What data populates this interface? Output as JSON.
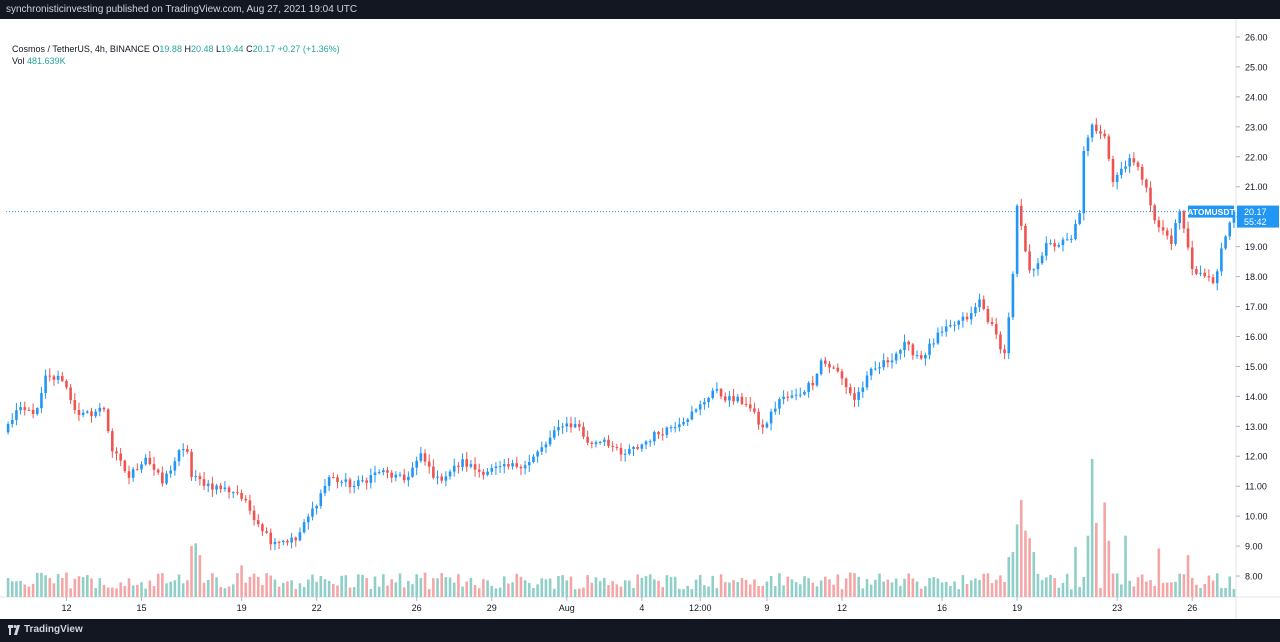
{
  "header": {
    "text": "synchronisticinvesting published on TradingView.com, Aug 27, 2021 19:04 UTC"
  },
  "legend": {
    "symbol": "Cosmos / TetherUS, 4h, BINANCE",
    "o_label": "O",
    "o_value": "19.88",
    "h_label": "H",
    "h_value": "20.48",
    "l_label": "L",
    "l_value": "19.44",
    "c_label": "C",
    "c_value": "20.17",
    "change": "+0.27 (+1.36%)",
    "vol_label": "Vol",
    "vol_value": "481.639K"
  },
  "price_tag": {
    "ticker": "ATOMUSDT",
    "price": "20.17",
    "countdown": "55:42"
  },
  "footer": {
    "brand": "TradingView"
  },
  "colors": {
    "up": "#26a69a",
    "up_candle": "#2196f3",
    "down_candle": "#ef5350",
    "vol_up": "#8fcfc8",
    "vol_down": "#f4a6a6",
    "background": "#ffffff",
    "frame": "#131722",
    "price_line": "#2196f3"
  },
  "chart_data": {
    "type": "candlestick",
    "title": "Cosmos / TetherUS, 4h, BINANCE",
    "y_ticks": [
      "8.00",
      "9.00",
      "10.00",
      "11.00",
      "12.00",
      "13.00",
      "14.00",
      "15.00",
      "16.00",
      "17.00",
      "18.00",
      "19.00",
      "20.00",
      "21.00",
      "22.00",
      "23.00",
      "24.00",
      "25.00",
      "26.00"
    ],
    "ylim": [
      7.3,
      26.4
    ],
    "x_ticks": [
      "12",
      "15",
      "19",
      "22",
      "26",
      "29",
      "Aug",
      "4",
      "12:00",
      "9",
      "12",
      "16",
      "19",
      "23",
      "26"
    ],
    "x_tick_bars": [
      14,
      32,
      56,
      74,
      98,
      116,
      134,
      152,
      166,
      182,
      200,
      224,
      242,
      266,
      284
    ],
    "bar_count": 295,
    "last_price": 20.17,
    "volume_unit": "K",
    "anchors": [
      [
        0,
        12.8
      ],
      [
        3,
        13.5
      ],
      [
        8,
        13.5
      ],
      [
        10,
        14.6
      ],
      [
        14,
        14.6
      ],
      [
        18,
        13.3
      ],
      [
        24,
        13.6
      ],
      [
        26,
        12.2
      ],
      [
        30,
        11.3
      ],
      [
        34,
        12.0
      ],
      [
        38,
        11.1
      ],
      [
        42,
        12.1
      ],
      [
        44,
        12.2
      ],
      [
        45,
        11.3
      ],
      [
        50,
        11.0
      ],
      [
        56,
        10.8
      ],
      [
        60,
        10.0
      ],
      [
        64,
        9.2
      ],
      [
        70,
        9.2
      ],
      [
        74,
        10.2
      ],
      [
        78,
        11.3
      ],
      [
        84,
        11.0
      ],
      [
        90,
        11.5
      ],
      [
        96,
        11.2
      ],
      [
        100,
        12.0
      ],
      [
        104,
        11.2
      ],
      [
        110,
        11.8
      ],
      [
        114,
        11.5
      ],
      [
        120,
        11.6
      ],
      [
        126,
        11.8
      ],
      [
        130,
        12.4
      ],
      [
        134,
        13.1
      ],
      [
        138,
        13.0
      ],
      [
        140,
        12.4
      ],
      [
        144,
        12.6
      ],
      [
        148,
        12.0
      ],
      [
        152,
        12.3
      ],
      [
        156,
        12.7
      ],
      [
        160,
        13.0
      ],
      [
        166,
        13.5
      ],
      [
        170,
        14.2
      ],
      [
        174,
        13.9
      ],
      [
        178,
        13.8
      ],
      [
        182,
        12.9
      ],
      [
        186,
        13.9
      ],
      [
        190,
        14.0
      ],
      [
        194,
        14.5
      ],
      [
        196,
        15.2
      ],
      [
        200,
        14.8
      ],
      [
        204,
        13.9
      ],
      [
        208,
        14.8
      ],
      [
        212,
        15.2
      ],
      [
        216,
        15.7
      ],
      [
        220,
        15.3
      ],
      [
        224,
        16.0
      ],
      [
        228,
        16.4
      ],
      [
        232,
        16.7
      ],
      [
        234,
        17.2
      ],
      [
        237,
        16.3
      ],
      [
        240,
        15.4
      ],
      [
        242,
        18.0
      ],
      [
        243,
        20.3
      ],
      [
        246,
        18.1
      ],
      [
        250,
        19.0
      ],
      [
        256,
        19.2
      ],
      [
        258,
        20.2
      ],
      [
        259,
        22.1
      ],
      [
        261,
        23.0
      ],
      [
        264,
        22.8
      ],
      [
        266,
        21.2
      ],
      [
        270,
        22.0
      ],
      [
        274,
        21.1
      ],
      [
        276,
        19.8
      ],
      [
        280,
        19.2
      ],
      [
        282,
        20.2
      ],
      [
        285,
        18.3
      ],
      [
        290,
        17.8
      ],
      [
        292,
        18.8
      ],
      [
        295,
        20.17
      ]
    ],
    "volume_spikes": [
      [
        44,
        1000
      ],
      [
        45,
        1050
      ],
      [
        46,
        820
      ],
      [
        56,
        620
      ],
      [
        240,
        780
      ],
      [
        241,
        880
      ],
      [
        242,
        1420
      ],
      [
        243,
        1900
      ],
      [
        244,
        1300
      ],
      [
        245,
        1150
      ],
      [
        246,
        880
      ],
      [
        256,
        980
      ],
      [
        259,
        1200
      ],
      [
        260,
        2700
      ],
      [
        261,
        1450
      ],
      [
        263,
        1850
      ],
      [
        264,
        1100
      ],
      [
        268,
        1200
      ],
      [
        276,
        950
      ],
      [
        283,
        820
      ]
    ]
  }
}
